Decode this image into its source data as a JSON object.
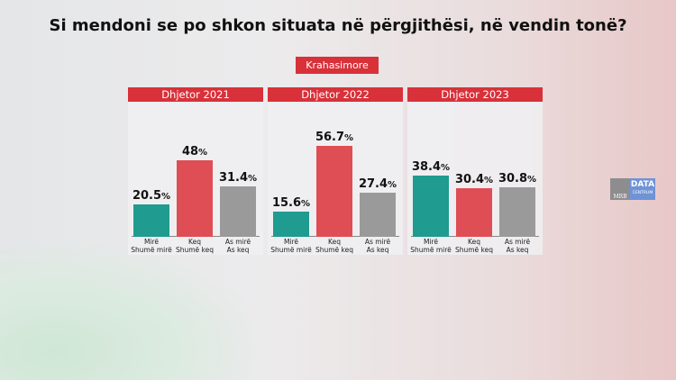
{
  "title": "Si mendoni se po shkon situata në përgjithësi, në vendin tonë?",
  "badge": "Krahasimore",
  "logo": {
    "left": "MRB",
    "right": "DATA",
    "right_sub": "CENTRUM"
  },
  "colors": {
    "Mirë": "#1f9b90",
    "Keq": "#df4e54",
    "As mirë": "#9a9a9a",
    "header": "#d8313a"
  },
  "chart_data": [
    {
      "type": "bar",
      "title": "Dhjetor 2021",
      "categories": [
        [
          "Mirë",
          "Shumë mirë"
        ],
        [
          "Keq",
          "Shumë keq"
        ],
        [
          "As mirë",
          "As keq"
        ]
      ],
      "values": [
        20.5,
        48,
        31.4
      ],
      "labels": [
        "20.5",
        "48",
        "31.4"
      ],
      "unit": "%"
    },
    {
      "type": "bar",
      "title": "Dhjetor 2022",
      "categories": [
        [
          "Mirë",
          "Shumë mirë"
        ],
        [
          "Keq",
          "Shumë keq"
        ],
        [
          "As mirë",
          "As keq"
        ]
      ],
      "values": [
        15.6,
        56.7,
        27.4
      ],
      "labels": [
        "15.6",
        "56.7",
        "27.4"
      ],
      "unit": "%"
    },
    {
      "type": "bar",
      "title": "Dhjetor 2023",
      "categories": [
        [
          "Mirë",
          "Shumë mirë"
        ],
        [
          "Keq",
          "Shumë keq"
        ],
        [
          "As mirë",
          "As keq"
        ]
      ],
      "values": [
        38.4,
        30.4,
        30.8
      ],
      "labels": [
        "38.4",
        "30.4",
        "30.8"
      ],
      "unit": "%"
    }
  ]
}
